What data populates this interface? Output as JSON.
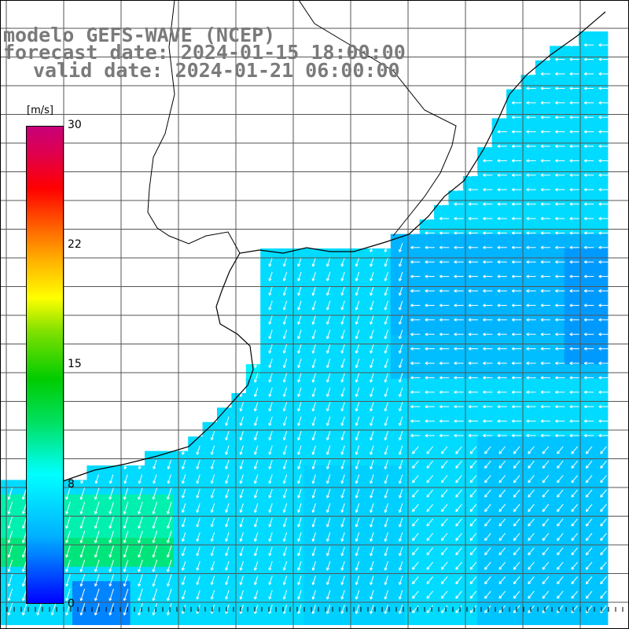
{
  "title": {
    "line1": "modelo GEFS-WAVE (NCEP)",
    "line2": "forecast date: 2024-01-15 18:00:00",
    "line3": "valid date: 2024-01-21 06:00:00"
  },
  "colorbar": {
    "unit": "[m/s]",
    "ticks": [
      "30",
      "22",
      "15",
      "8",
      "0"
    ],
    "min": 0,
    "max": 30,
    "colors": [
      "#0000ff",
      "#00b0ff",
      "#00ffff",
      "#00cc00",
      "#ffff00",
      "#ff6000",
      "#ff0000",
      "#c8007a"
    ]
  },
  "map": {
    "land_color": "#ffffff",
    "grid_color": "#555555",
    "coast_color": "#000000",
    "vector_color": "#ffffff"
  }
}
